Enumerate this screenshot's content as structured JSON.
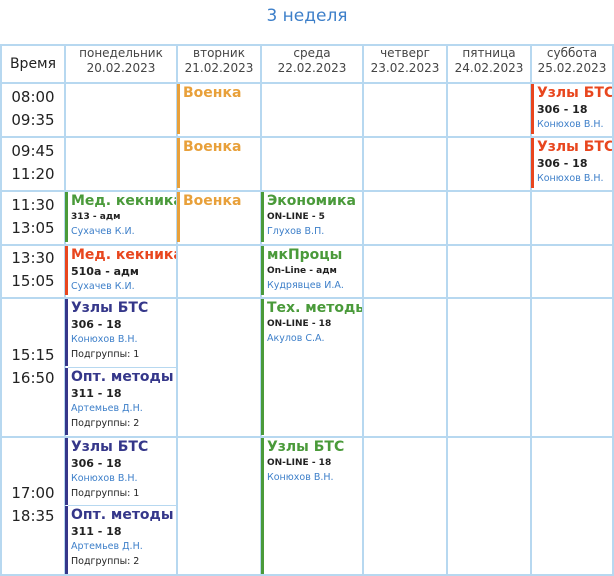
{
  "week_title": "3 неделя",
  "time_header": "Время",
  "days": [
    {
      "name": "понедельник",
      "date": "20.02.2023"
    },
    {
      "name": "вторник",
      "date": "21.02.2023"
    },
    {
      "name": "среда",
      "date": "22.02.2023"
    },
    {
      "name": "четверг",
      "date": "23.02.2023"
    },
    {
      "name": "пятница",
      "date": "24.02.2023"
    },
    {
      "name": "суббота",
      "date": "25.02.2023"
    }
  ],
  "periods": [
    {
      "start": "08:00",
      "end": "09:35"
    },
    {
      "start": "09:45",
      "end": "11:20"
    },
    {
      "start": "11:30",
      "end": "13:05"
    },
    {
      "start": "13:30",
      "end": "15:05"
    },
    {
      "start": "15:15",
      "end": "16:50"
    },
    {
      "start": "17:00",
      "end": "18:35"
    }
  ],
  "lessons": {
    "tue_p1": {
      "title": "Военка"
    },
    "tue_p2": {
      "title": "Военка"
    },
    "tue_p3": {
      "title": "Военка"
    },
    "sat_p1": {
      "title": "Узлы БТС",
      "room": "306 - 18",
      "teacher": "Конюхов В.Н."
    },
    "sat_p2": {
      "title": "Узлы БТС",
      "room": "306 - 18",
      "teacher": "Конюхов В.Н."
    },
    "mon_p3": {
      "title": "Мед. кекника",
      "room": "313 - адм",
      "teacher": "Сухачев К.И."
    },
    "wed_p3": {
      "title": "Экономика",
      "room": "ON-LINE - 5",
      "teacher": "Глухов В.П."
    },
    "mon_p4": {
      "title": "Мед. кекника",
      "room": "510а - адм",
      "teacher": "Сухачев К.И."
    },
    "wed_p4": {
      "title": "мкПроцы",
      "room": "On-Line - адм",
      "teacher": "Кудрявцев И.А."
    },
    "mon_p5a": {
      "title": "Узлы БТС",
      "room": "306 - 18",
      "teacher": "Конюхов В.Н.",
      "group": "Подгруппы: 1"
    },
    "mon_p5b": {
      "title": "Опт. методы",
      "room": "311 - 18",
      "teacher": "Артемьев Д.Н.",
      "group": "Подгруппы: 2"
    },
    "wed_p5": {
      "title": "Тех. методы",
      "room": "ON-LINE - 18",
      "teacher": "Акулов С.А."
    },
    "mon_p6a": {
      "title": "Узлы БТС",
      "room": "306 - 18",
      "teacher": "Конюхов В.Н.",
      "group": "Подгруппы: 1"
    },
    "mon_p6b": {
      "title": "Опт. методы",
      "room": "311 - 18",
      "teacher": "Артемьев Д.Н.",
      "group": "Подгруппы: 2"
    },
    "wed_p6": {
      "title": "Узлы БТС",
      "room": "ON-LINE - 18",
      "teacher": "Конюхов В.Н."
    }
  },
  "colors": {
    "grid": "#b7d8f0",
    "title": "#3d7fc9",
    "military": "#e8a03a",
    "red": "#e8461e",
    "green": "#4a9a3a",
    "navy": "#35378a",
    "teacher": "#3d7fc9"
  }
}
